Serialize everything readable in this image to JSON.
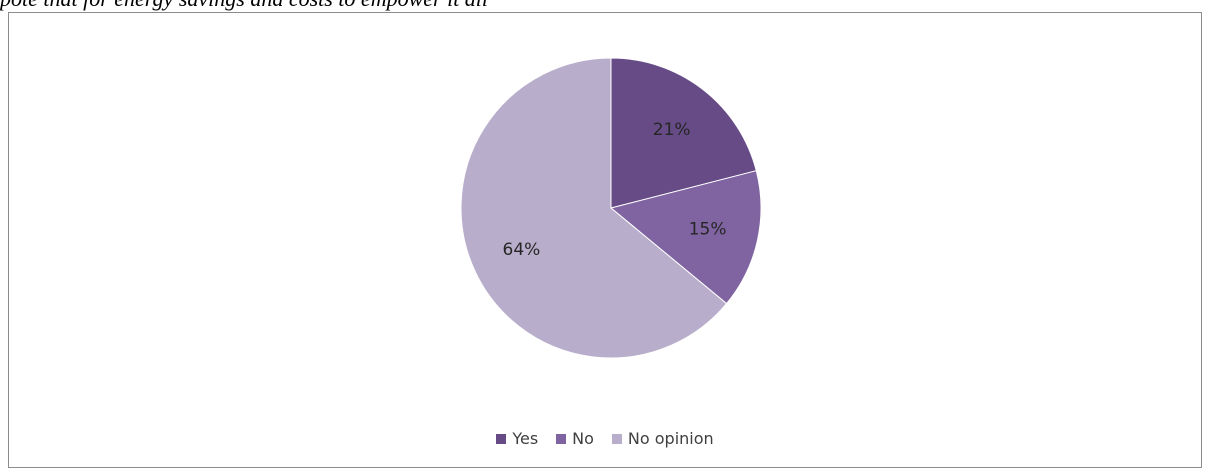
{
  "caption": {
    "text": "pote that for energy savings and costs to empower it all"
  },
  "chart_data": {
    "type": "pie",
    "title": "",
    "slices": [
      {
        "label": "Yes",
        "value": 21,
        "display": "21%",
        "color": "#664b86"
      },
      {
        "label": "No",
        "value": 15,
        "display": "15%",
        "color": "#8064a2"
      },
      {
        "label": "No opinion",
        "value": 64,
        "display": "64%",
        "color": "#b8aecb"
      }
    ],
    "legend_position": "bottom",
    "start_angle": "12 o'clock",
    "direction": "clockwise"
  }
}
